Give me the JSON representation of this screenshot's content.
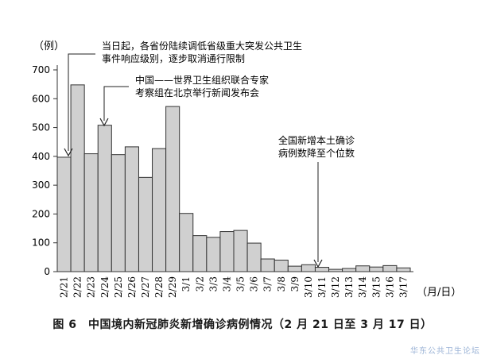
{
  "chart_data": {
    "type": "bar",
    "ylabel": "（例）",
    "xlabel": "（月/日）",
    "ylim": [
      0,
      700
    ],
    "yticks": [
      0,
      100,
      200,
      300,
      400,
      500,
      600,
      700
    ],
    "bar_color": "#d0d0d0",
    "categories": [
      "2/21",
      "2/22",
      "2/23",
      "2/24",
      "2/25",
      "2/26",
      "2/27",
      "2/28",
      "2/29",
      "3/1",
      "3/2",
      "3/3",
      "3/4",
      "3/5",
      "3/6",
      "3/7",
      "3/8",
      "3/9",
      "3/10",
      "3/11",
      "3/12",
      "3/13",
      "3/14",
      "3/15",
      "3/16",
      "3/17"
    ],
    "values": [
      397,
      648,
      409,
      508,
      406,
      433,
      327,
      427,
      573,
      202,
      125,
      119,
      139,
      143,
      99,
      44,
      40,
      19,
      24,
      15,
      8,
      11,
      20,
      16,
      21,
      13
    ],
    "annotations": [
      {
        "category_index": 0,
        "lines": [
          "当日起，各省份陆续调低省级重大突发公共卫生",
          "事件响应级别，逐步取消通行限制"
        ]
      },
      {
        "category_index": 3,
        "lines": [
          "中国——世界卫生组织联合专家",
          "考察组在北京举行新闻发布会"
        ]
      },
      {
        "category_index": 19,
        "lines": [
          "全国新增本土确诊",
          "病例数降至个位数"
        ]
      }
    ]
  },
  "caption": "图 6　中国境内新冠肺炎新增确诊病例情况（2 月 21 日至 3 月 17 日）",
  "watermark": "华东公共卫生论坛"
}
